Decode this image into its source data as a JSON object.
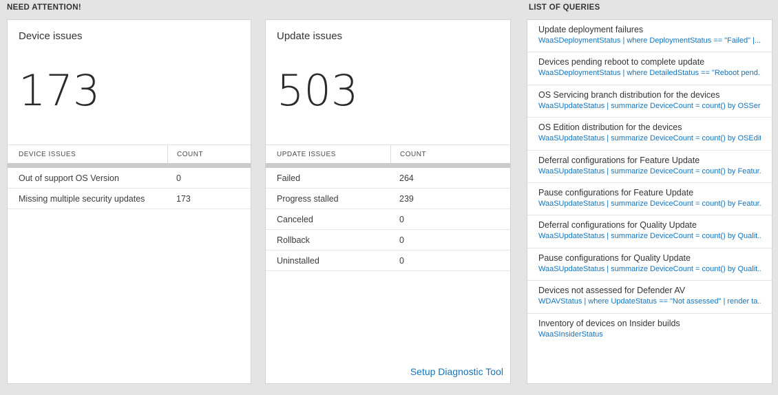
{
  "need_attention": {
    "header": "NEED ATTENTION!",
    "cards": [
      {
        "title": "Device issues",
        "big_number": "173",
        "table": {
          "columns": [
            "DEVICE ISSUES",
            "COUNT"
          ],
          "rows": [
            {
              "label": "Out of support OS Version",
              "count": "0"
            },
            {
              "label": "Missing multiple security updates",
              "count": "173"
            }
          ]
        }
      },
      {
        "title": "Update issues",
        "big_number": "503",
        "table": {
          "columns": [
            "UPDATE ISSUES",
            "COUNT"
          ],
          "rows": [
            {
              "label": "Failed",
              "count": "264"
            },
            {
              "label": "Progress stalled",
              "count": "239"
            },
            {
              "label": "Canceled",
              "count": "0"
            },
            {
              "label": "Rollback",
              "count": "0"
            },
            {
              "label": "Uninstalled",
              "count": "0"
            }
          ]
        },
        "footer_link": "Setup Diagnostic Tool"
      }
    ]
  },
  "queries": {
    "header": "LIST OF QUERIES",
    "items": [
      {
        "title": "Update deployment failures",
        "query": "WaaSDeploymentStatus | where DeploymentStatus == \"Failed\" |..."
      },
      {
        "title": "Devices pending reboot to complete update",
        "query": "WaaSDeploymentStatus | where DetailedStatus == \"Reboot pend..."
      },
      {
        "title": "OS Servicing branch distribution for the devices",
        "query": "WaaSUpdateStatus | summarize DeviceCount = count() by OSSer..."
      },
      {
        "title": "OS Edition distribution for the devices",
        "query": "WaaSUpdateStatus | summarize DeviceCount = count() by OSEdit..."
      },
      {
        "title": "Deferral configurations for Feature Update",
        "query": "WaaSUpdateStatus | summarize DeviceCount = count() by Featur..."
      },
      {
        "title": "Pause configurations for Feature Update",
        "query": "WaaSUpdateStatus | summarize DeviceCount = count() by Featur..."
      },
      {
        "title": "Deferral configurations for Quality Update",
        "query": "WaaSUpdateStatus | summarize DeviceCount = count() by Qualit..."
      },
      {
        "title": "Pause configurations for Quality Update",
        "query": "WaaSUpdateStatus | summarize DeviceCount = count() by Qualit..."
      },
      {
        "title": "Devices not assessed for Defender AV",
        "query": "WDAVStatus | where UpdateStatus == \"Not assessed\" | render ta..."
      },
      {
        "title": "Inventory of devices on Insider builds",
        "query": "WaaSInsiderStatus"
      }
    ]
  }
}
